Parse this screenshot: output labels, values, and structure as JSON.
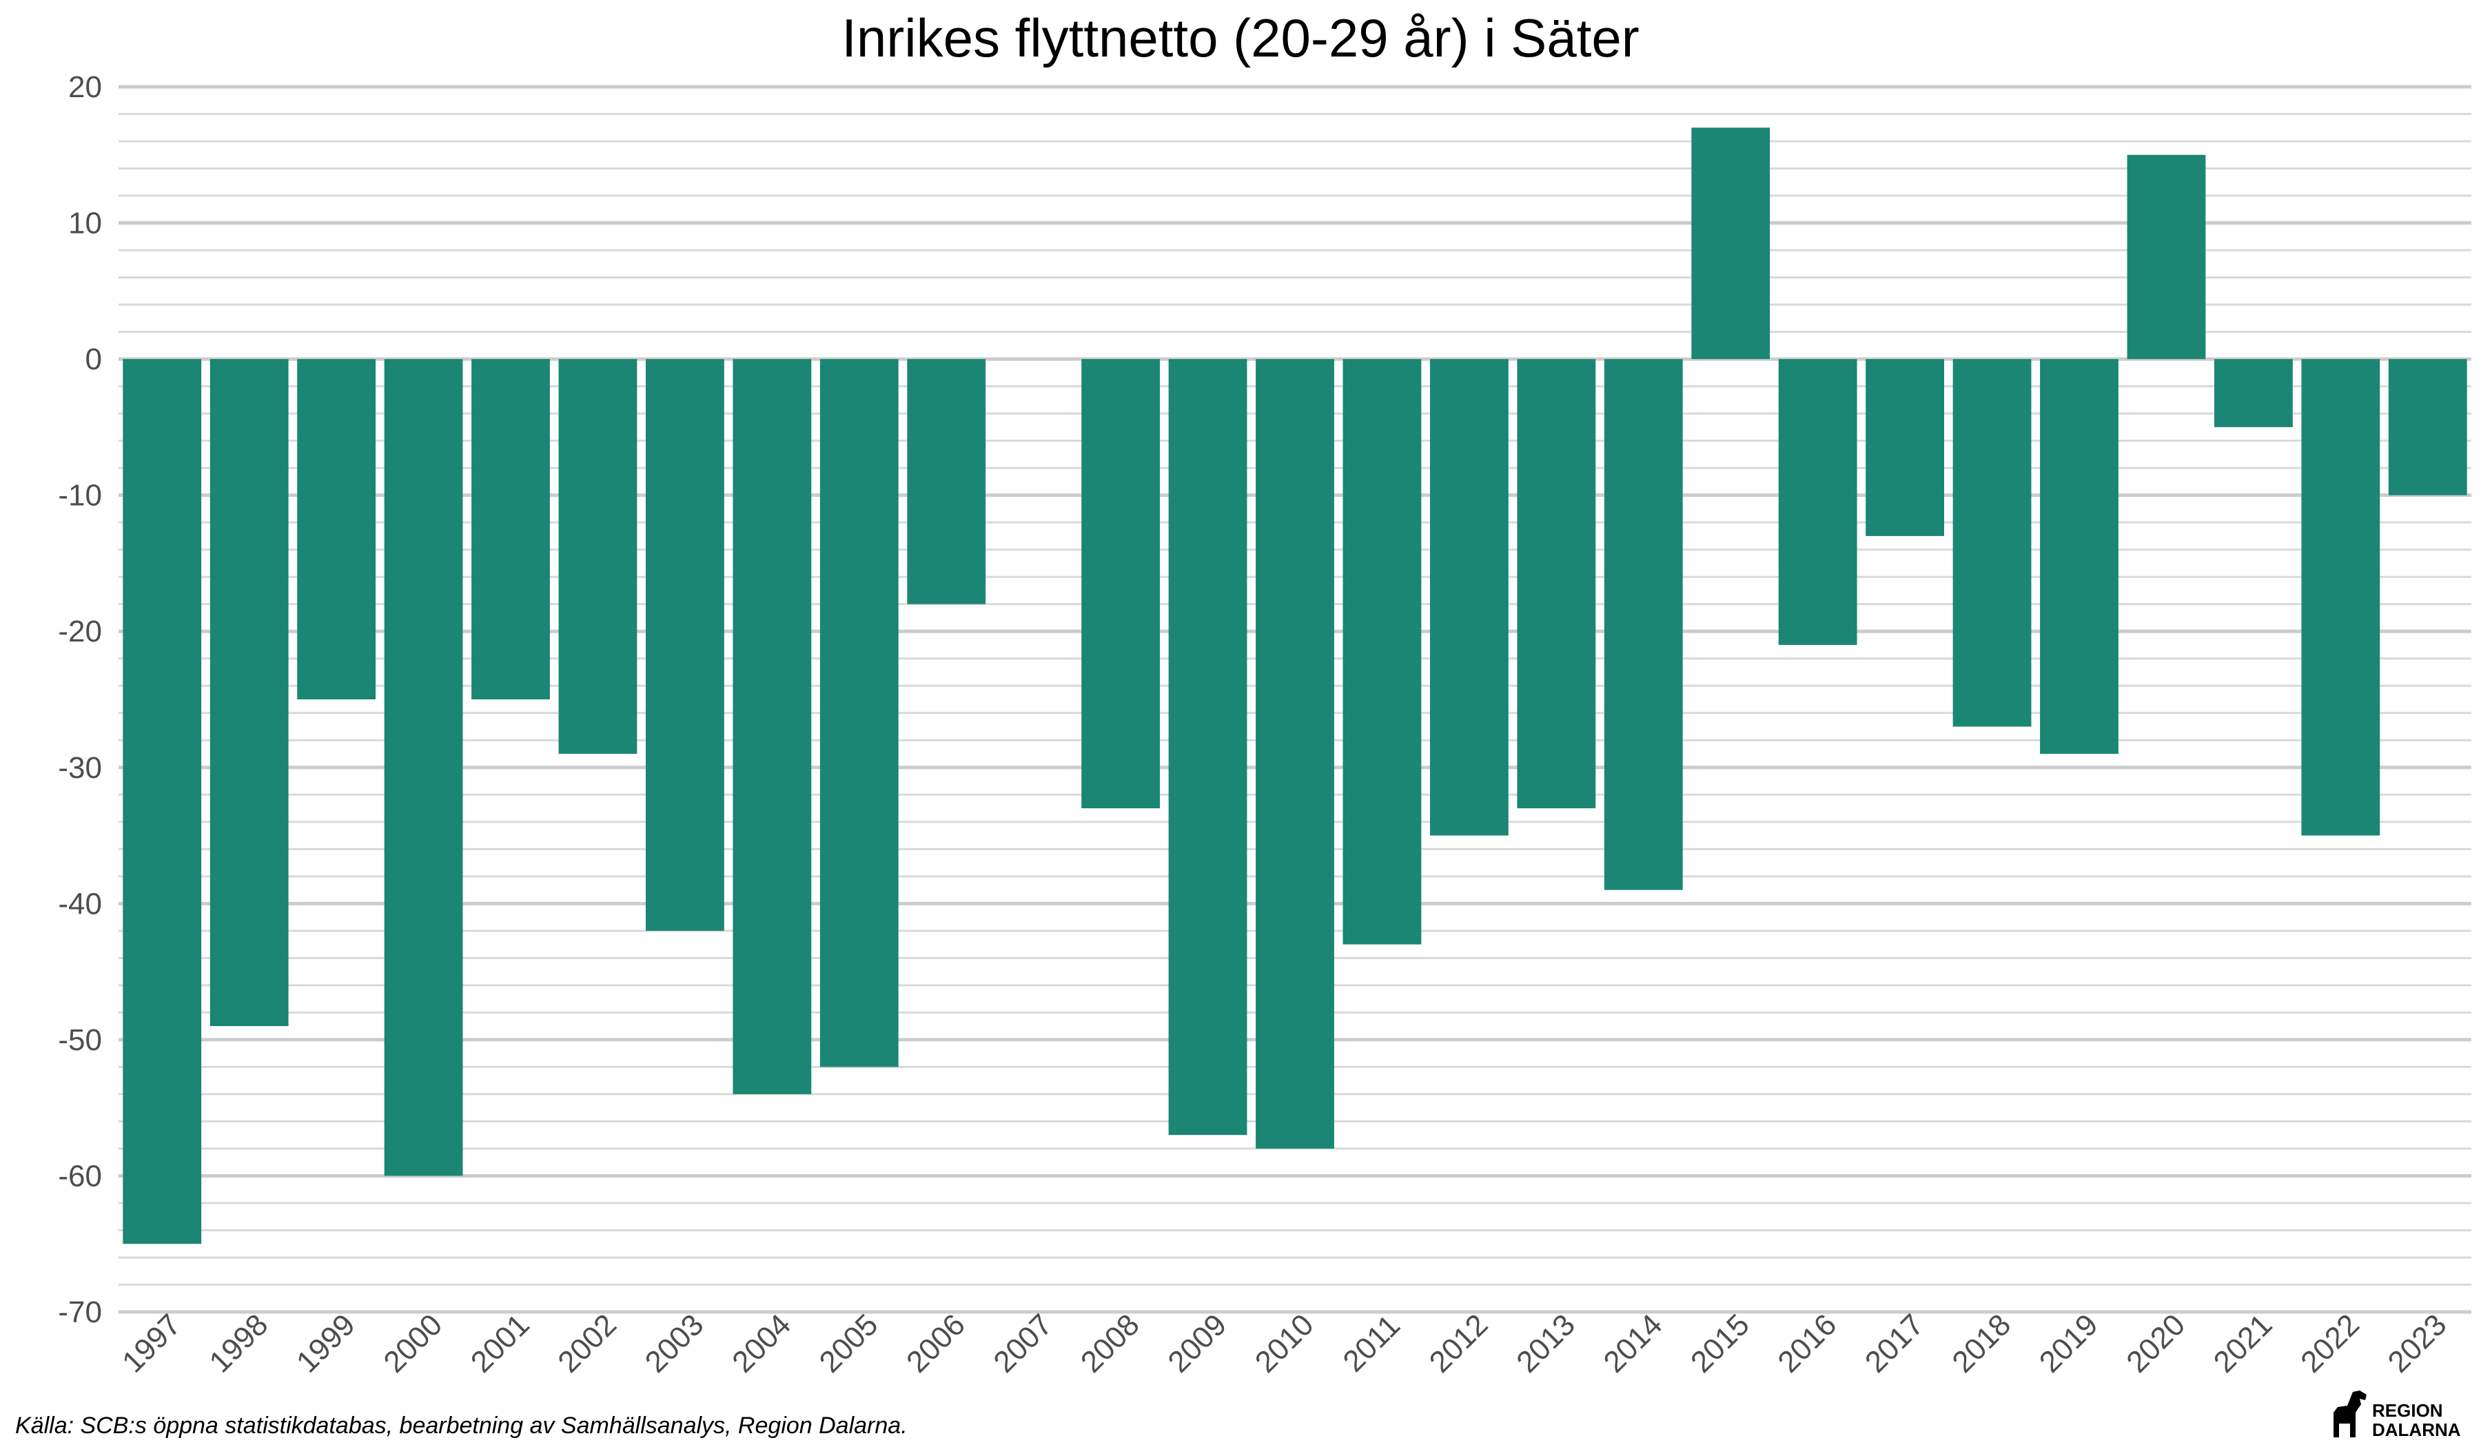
{
  "chart_data": {
    "type": "bar",
    "title": "Inrikes flyttnetto (20-29 år) i Säter",
    "xlabel": "",
    "ylabel": "",
    "categories": [
      "1997",
      "1998",
      "1999",
      "2000",
      "2001",
      "2002",
      "2003",
      "2004",
      "2005",
      "2006",
      "2007",
      "2008",
      "2009",
      "2010",
      "2011",
      "2012",
      "2013",
      "2014",
      "2015",
      "2016",
      "2017",
      "2018",
      "2019",
      "2020",
      "2021",
      "2022",
      "2023"
    ],
    "values": [
      -65,
      -49,
      -25,
      -60,
      -25,
      -29,
      -42,
      -54,
      -52,
      -18,
      0,
      -33,
      -57,
      -58,
      -43,
      -35,
      -33,
      -39,
      17,
      -21,
      -13,
      -27,
      -29,
      15,
      -5,
      -35,
      -10
    ],
    "ylim": [
      -70,
      20
    ],
    "yticks": [
      20,
      10,
      0,
      -10,
      -20,
      -30,
      -40,
      -50,
      -60,
      -70
    ],
    "ytick_labels": [
      "20",
      "10",
      "0",
      "-10",
      "-20",
      "-30",
      "-40",
      "-50",
      "-60",
      "-70"
    ],
    "bar_color": "#1a8673",
    "grid": true,
    "legend": "none"
  },
  "caption": "Källa: SCB:s öppna statistikdatabas, bearbetning av Samhällsanalys, Region Dalarna.",
  "logo": {
    "line1": "REGION",
    "line2": "DALARNA",
    "icon": "dala-horse-icon"
  }
}
